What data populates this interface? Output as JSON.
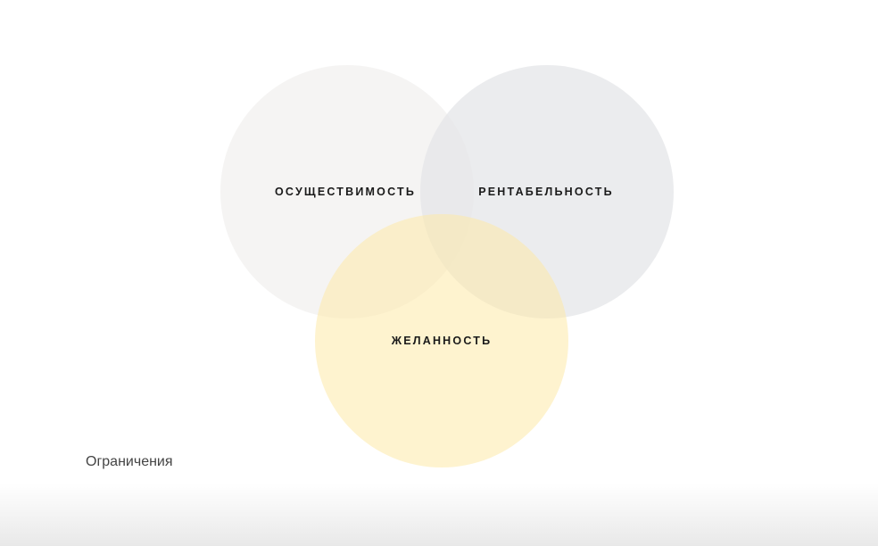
{
  "diagram": {
    "circles": [
      {
        "label": "ОСУЩЕСТВИМОСТЬ",
        "color": "#f2f0ef"
      },
      {
        "label": "РЕНТАБЕЛЬНОСТЬ",
        "color": "#e4e5e8"
      },
      {
        "label": "ЖЕЛАННОСТЬ",
        "color": "#fde9a8"
      }
    ]
  },
  "caption": "Ограничения"
}
